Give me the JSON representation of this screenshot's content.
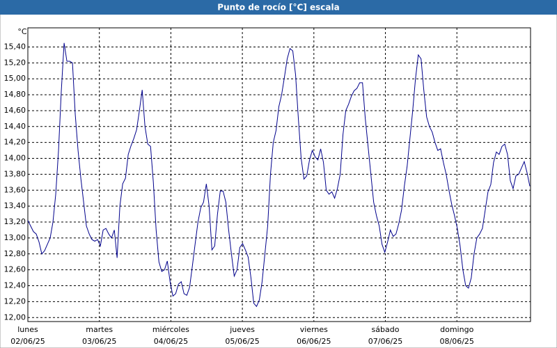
{
  "chart_data": {
    "type": "line",
    "title": "Punto de rocío [°C] escala",
    "y_unit": "°C",
    "ylim": [
      11.95,
      15.64
    ],
    "yticks": [
      {
        "value": 12.0,
        "label": "12,00"
      },
      {
        "value": 12.2,
        "label": "12,20"
      },
      {
        "value": 12.4,
        "label": "12,40"
      },
      {
        "value": 12.6,
        "label": "12,60"
      },
      {
        "value": 12.8,
        "label": "12,80"
      },
      {
        "value": 13.0,
        "label": "13,00"
      },
      {
        "value": 13.2,
        "label": "13,20"
      },
      {
        "value": 13.4,
        "label": "13,40"
      },
      {
        "value": 13.6,
        "label": "13,60"
      },
      {
        "value": 13.8,
        "label": "13,80"
      },
      {
        "value": 14.0,
        "label": "14,00"
      },
      {
        "value": 14.2,
        "label": "14,20"
      },
      {
        "value": 14.4,
        "label": "14,40"
      },
      {
        "value": 14.6,
        "label": "14,60"
      },
      {
        "value": 14.8,
        "label": "14,80"
      },
      {
        "value": 15.0,
        "label": "15,00"
      },
      {
        "value": 15.2,
        "label": "15,20"
      },
      {
        "value": 15.4,
        "label": "15,40"
      }
    ],
    "xlim": [
      0,
      7.03
    ],
    "xticks": [
      {
        "value": 0,
        "label": "02/06/25"
      },
      {
        "value": 1,
        "label": "03/06/25"
      },
      {
        "value": 2,
        "label": "04/06/25"
      },
      {
        "value": 3,
        "label": "05/06/25"
      },
      {
        "value": 4,
        "label": "06/06/25"
      },
      {
        "value": 5,
        "label": "07/06/25"
      },
      {
        "value": 6,
        "label": "08/06/25"
      }
    ],
    "xtick_days": [
      "lunes",
      "martes",
      "miércoles",
      "jueves",
      "viernes",
      "sábado",
      "domingo"
    ],
    "grid": true,
    "x": [
      0,
      0.039,
      0.078,
      0.117,
      0.156,
      0.195,
      0.234,
      0.273,
      0.312,
      0.351,
      0.39,
      0.429,
      0.468,
      0.507,
      0.546,
      0.585,
      0.624,
      0.663,
      0.702,
      0.741,
      0.78,
      0.819,
      0.858,
      0.897,
      0.936,
      0.975,
      1.014,
      1.053,
      1.092,
      1.131,
      1.17,
      1.209,
      1.248,
      1.287,
      1.326,
      1.365,
      1.404,
      1.443,
      1.482,
      1.521,
      1.56,
      1.599,
      1.638,
      1.677,
      1.716,
      1.755,
      1.794,
      1.833,
      1.872,
      1.911,
      1.95,
      1.989,
      2.028,
      2.067,
      2.106,
      2.145,
      2.184,
      2.223,
      2.262,
      2.301,
      2.34,
      2.379,
      2.418,
      2.457,
      2.496,
      2.535,
      2.574,
      2.613,
      2.652,
      2.691,
      2.73,
      2.769,
      2.808,
      2.847,
      2.886,
      2.925,
      2.964,
      3.003,
      3.042,
      3.081,
      3.12,
      3.159,
      3.198,
      3.237,
      3.276,
      3.315,
      3.354,
      3.393,
      3.432,
      3.471,
      3.51,
      3.549,
      3.588,
      3.627,
      3.666,
      3.705,
      3.744,
      3.783,
      3.822,
      3.861,
      3.9,
      3.939,
      3.978,
      4.017,
      4.056,
      4.095,
      4.134,
      4.173,
      4.212,
      4.251,
      4.29,
      4.329,
      4.368,
      4.407,
      4.446,
      4.485,
      4.524,
      4.563,
      4.602,
      4.641,
      4.68,
      4.719,
      4.758,
      4.797,
      4.836,
      4.875,
      4.914,
      4.953,
      4.992,
      5.031,
      5.07,
      5.109,
      5.148,
      5.187,
      5.226,
      5.265,
      5.304,
      5.343,
      5.382,
      5.421,
      5.46,
      5.499,
      5.538,
      5.577,
      5.616,
      5.655,
      5.694,
      5.733,
      5.772,
      5.811,
      5.85,
      5.889,
      5.928,
      5.967,
      6.006,
      6.045,
      6.084,
      6.123,
      6.162,
      6.201,
      6.24,
      6.279,
      6.318,
      6.357,
      6.396,
      6.435,
      6.474,
      6.513,
      6.552,
      6.591,
      6.63,
      6.669,
      6.708,
      6.747,
      6.786,
      6.825,
      6.864,
      6.903,
      6.942,
      6.981,
      7.02
    ],
    "series": [
      {
        "color": "#00008b",
        "values": [
          13.22,
          13.15,
          13.08,
          13.05,
          12.95,
          12.8,
          12.84,
          12.92,
          13.0,
          13.2,
          13.55,
          14.1,
          14.85,
          15.45,
          15.22,
          15.22,
          15.2,
          14.55,
          14.1,
          13.75,
          13.45,
          13.15,
          13.05,
          12.98,
          12.96,
          12.98,
          12.9,
          13.1,
          13.12,
          13.05,
          13.0,
          13.1,
          12.75,
          13.4,
          13.68,
          13.75,
          14.05,
          14.16,
          14.25,
          14.36,
          14.6,
          14.86,
          14.4,
          14.18,
          14.15,
          13.7,
          13.1,
          12.7,
          12.58,
          12.6,
          12.71,
          12.45,
          12.27,
          12.3,
          12.42,
          12.45,
          12.3,
          12.28,
          12.38,
          12.65,
          12.93,
          13.2,
          13.38,
          13.45,
          13.68,
          13.4,
          12.85,
          12.9,
          13.3,
          13.59,
          13.59,
          13.45,
          13.1,
          12.8,
          12.52,
          12.6,
          12.88,
          12.93,
          12.85,
          12.76,
          12.5,
          12.18,
          12.14,
          12.22,
          12.45,
          12.8,
          13.15,
          13.8,
          14.2,
          14.35,
          14.65,
          14.8,
          15.02,
          15.25,
          15.38,
          15.35,
          15.05,
          14.5,
          14.0,
          13.74,
          13.78,
          13.98,
          14.1,
          14.02,
          13.98,
          14.12,
          13.95,
          13.6,
          13.55,
          13.58,
          13.5,
          13.62,
          13.8,
          14.3,
          14.6,
          14.68,
          14.78,
          14.85,
          14.88,
          14.95,
          14.95,
          14.5,
          14.15,
          13.8,
          13.45,
          13.28,
          13.15,
          12.92,
          12.82,
          12.95,
          13.1,
          13.02,
          13.05,
          13.18,
          13.35,
          13.65,
          13.9,
          14.25,
          14.6,
          15.0,
          15.3,
          15.25,
          14.85,
          14.52,
          14.4,
          14.33,
          14.2,
          14.1,
          14.12,
          13.95,
          13.8,
          13.6,
          13.42,
          13.28,
          13.12,
          12.9,
          12.6,
          12.4,
          12.37,
          12.5,
          12.8,
          13.0,
          13.05,
          13.12,
          13.35,
          13.58,
          13.67,
          13.95,
          14.08,
          14.05,
          14.15,
          14.18,
          14.05,
          13.72,
          13.62,
          13.78,
          13.8,
          13.88,
          13.96,
          13.82,
          13.65
        ]
      }
    ]
  }
}
